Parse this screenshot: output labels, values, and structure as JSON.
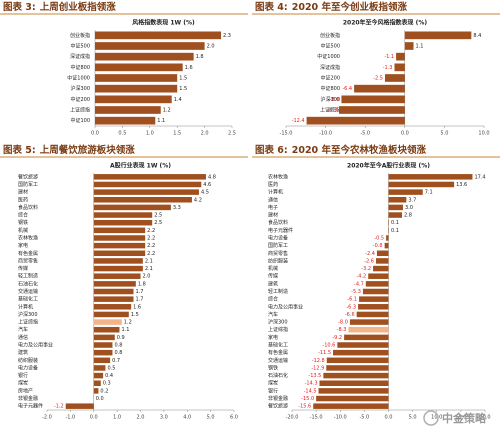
{
  "chart_data": [
    {
      "type": "bar",
      "label": "图表 3:",
      "title": "上周创业板指领涨",
      "subtitle": "风格指数表现 1W (%)",
      "categories": [
        "创业板指",
        "中证500",
        "深证成指",
        "中证800",
        "中证1000",
        "沪深300",
        "中证200",
        "上证综指",
        "中证100"
      ],
      "values": [
        2.3,
        2.0,
        1.8,
        1.6,
        1.5,
        1.5,
        1.4,
        1.2,
        1.1
      ],
      "value_labels": [
        "2.3",
        "2.0",
        "1.8",
        "1.6",
        "1.5",
        "1.5",
        "1.4",
        "1.2",
        "1.1"
      ],
      "color": "#a0501e",
      "negative_label_color": "#e02020",
      "xlim": [
        0,
        2.5
      ],
      "xticks": [
        {
          "value": 0,
          "label": "0.0"
        },
        {
          "value": 0.5,
          "label": "0.5"
        },
        {
          "value": 1,
          "label": "1.0"
        },
        {
          "value": 1.5,
          "label": "1.5"
        },
        {
          "value": 2,
          "label": "2.0"
        },
        {
          "value": 2.5,
          "label": "2.5"
        }
      ]
    },
    {
      "type": "bar",
      "label": "图表 4:",
      "title": "2020 年至今创业板指领涨",
      "subtitle": "2020年至今风格指数表现 (%)",
      "categories": [
        "创业板指",
        "中证500",
        "中证1000",
        "深证成指",
        "中证200",
        "中证800",
        "沪深300",
        "上证综指",
        "中证100"
      ],
      "values": [
        8.4,
        1.1,
        -1.1,
        -1.3,
        -2.5,
        -6.4,
        -8.0,
        -8.3,
        -12.4
      ],
      "value_labels": [
        "8.4",
        "1.1",
        "-1.1",
        "-1.3",
        "-2.5",
        "-6.4",
        "-8.0",
        "-8.3",
        "-12.4"
      ],
      "color": "#a0501e",
      "negative_label_color": "#e02020",
      "xlim": [
        -15,
        10
      ],
      "xticks": [
        {
          "value": -15,
          "label": "-15.0"
        },
        {
          "value": -10,
          "label": "-10.0"
        },
        {
          "value": -5,
          "label": "-5.0"
        },
        {
          "value": 0,
          "label": "0.0"
        },
        {
          "value": 5,
          "label": "5.0"
        },
        {
          "value": 10,
          "label": "10.0"
        }
      ]
    },
    {
      "type": "bar",
      "label": "图表 5:",
      "title": "上周餐饮旅游板块领涨",
      "subtitle": "A股行业表现 1W (%)",
      "categories": [
        "餐饮旅游",
        "国防军工",
        "建材",
        "医药",
        "食品饮料",
        "综合",
        "钢铁",
        "机械",
        "农林牧渔",
        "家电",
        "有色金属",
        "商贸零售",
        "传媒",
        "轻工制造",
        "石油石化",
        "交通运输",
        "基础化工",
        "计算机",
        "沪深300",
        "上证综指",
        "汽车",
        "通信",
        "电力及公用事业",
        "建筑",
        "纺织服装",
        "电力设备",
        "银行",
        "煤炭",
        "房地产",
        "非银金融",
        "电子元器件"
      ],
      "values": [
        4.8,
        4.6,
        4.5,
        4.2,
        3.3,
        2.5,
        2.5,
        2.2,
        2.2,
        2.2,
        2.2,
        2.1,
        2.1,
        2.0,
        1.8,
        1.7,
        1.7,
        1.6,
        1.5,
        1.2,
        1.1,
        0.9,
        0.8,
        0.8,
        0.7,
        0.5,
        0.4,
        0.3,
        0.2,
        0.0,
        -1.2
      ],
      "value_labels": [
        "4.8",
        "4.6",
        "4.5",
        "4.2",
        "3.3",
        "2.5",
        "2.5",
        "2.2",
        "2.2",
        "2.2",
        "2.2",
        "2.1",
        "2.1",
        "2.0",
        "1.8",
        "1.7",
        "1.7",
        "1.6",
        "1.5",
        "1.2",
        "1.1",
        "0.9",
        "0.8",
        "0.8",
        "0.7",
        "0.5",
        "0.4",
        "0.3",
        "0.2",
        "0.0",
        "-1.2"
      ],
      "color": "#a0501e",
      "negative_label_color": "#e02020",
      "highlight": {
        "category": "上证综指",
        "color": "#f4b48a"
      },
      "xlim": [
        -2,
        6
      ],
      "xticks": [
        {
          "value": -2,
          "label": "-2.0"
        },
        {
          "value": -1,
          "label": "-1.0"
        },
        {
          "value": 0,
          "label": "0.0"
        },
        {
          "value": 1,
          "label": "1.0"
        },
        {
          "value": 2,
          "label": "2.0"
        },
        {
          "value": 3,
          "label": "3.0"
        },
        {
          "value": 4,
          "label": "4.0"
        },
        {
          "value": 5,
          "label": "5.0"
        },
        {
          "value": 6,
          "label": "6.0"
        }
      ]
    },
    {
      "type": "bar",
      "label": "图表 6:",
      "title": "2020 年至今农林牧渔板块领涨",
      "subtitle": "2020年至今A股行业表现 (%)",
      "categories": [
        "农林牧渔",
        "医药",
        "计算机",
        "通信",
        "电子",
        "建材",
        "食品饮料",
        "电子元器件",
        "电力设备",
        "国防军工",
        "商贸零售",
        "纺织服装",
        "机械",
        "传媒",
        "建筑",
        "轻工制造",
        "综合",
        "电力及公用事业",
        "汽车",
        "沪深300",
        "上证综指",
        "家电",
        "基础化工",
        "有色金属",
        "交通运输",
        "钢铁",
        "石油石化",
        "煤炭",
        "银行",
        "非银金融",
        "餐饮旅游"
      ],
      "values": [
        17.4,
        13.6,
        7.1,
        3.7,
        3.0,
        2.8,
        0.1,
        0.1,
        -0.5,
        -0.8,
        -2.4,
        -2.6,
        -3.2,
        -4.2,
        -4.7,
        -5.3,
        -6.1,
        -6.3,
        -6.6,
        -8.0,
        -8.3,
        -9.2,
        -10.6,
        -11.5,
        -12.8,
        -12.9,
        -13.5,
        -14.3,
        -14.5,
        -15.0,
        -15.6
      ],
      "value_labels": [
        "17.4",
        "13.6",
        "7.1",
        "3.7",
        "3.0",
        "2.8",
        "0.1",
        "0.1",
        "-0.5",
        "-0.8",
        "-2.4",
        "-2.6",
        "-3.2",
        "-4.2",
        "-4.7",
        "-5.3",
        "-6.1",
        "-6.3",
        "-6.6",
        "-8.0",
        "-8.3",
        "-9.2",
        "-10.6",
        "-11.5",
        "-12.8",
        "-12.9",
        "-13.5",
        "-14.3",
        "-14.5",
        "-15.0",
        "-15.6"
      ],
      "color": "#a0501e",
      "negative_label_color": "#e02020",
      "highlight": {
        "category": "上证综指",
        "color": "#f4b48a"
      },
      "xlim": [
        -20,
        20
      ],
      "xticks": [
        {
          "value": -20,
          "label": "-20.0"
        },
        {
          "value": -15,
          "label": "-15.0"
        },
        {
          "value": -10,
          "label": "-10.0"
        },
        {
          "value": -5,
          "label": "-5.0"
        },
        {
          "value": 0,
          "label": "0.0"
        },
        {
          "value": 5,
          "label": "5.0"
        },
        {
          "value": 10,
          "label": "10.0"
        },
        {
          "value": 15,
          "label": "15.0"
        },
        {
          "value": 20,
          "label": "20.0"
        }
      ]
    }
  ],
  "watermark": "中金策略"
}
